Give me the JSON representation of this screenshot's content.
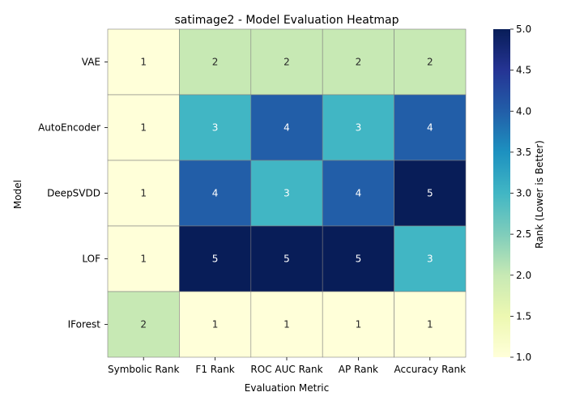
{
  "chart_data": {
    "type": "heatmap",
    "title": "satimage2 - Model Evaluation Heatmap",
    "xlabel": "Evaluation Metric",
    "ylabel": "Model",
    "x_categories": [
      "Symbolic Rank",
      "F1 Rank",
      "ROC AUC Rank",
      "AP Rank",
      "Accuracy Rank"
    ],
    "y_categories": [
      "VAE",
      "AutoEncoder",
      "DeepSVDD",
      "LOF",
      "IForest"
    ],
    "values": [
      [
        1,
        2,
        2,
        2,
        2
      ],
      [
        1,
        3,
        4,
        3,
        4
      ],
      [
        1,
        4,
        3,
        4,
        5
      ],
      [
        1,
        5,
        5,
        5,
        3
      ],
      [
        2,
        1,
        1,
        1,
        1
      ]
    ],
    "colorbar": {
      "label": "Rank (Lower is Better)",
      "range": [
        1.0,
        5.0
      ],
      "ticks": [
        "1.0",
        "1.5",
        "2.0",
        "2.5",
        "3.0",
        "3.5",
        "4.0",
        "4.5",
        "5.0"
      ],
      "colormap": "YlGnBu"
    }
  }
}
